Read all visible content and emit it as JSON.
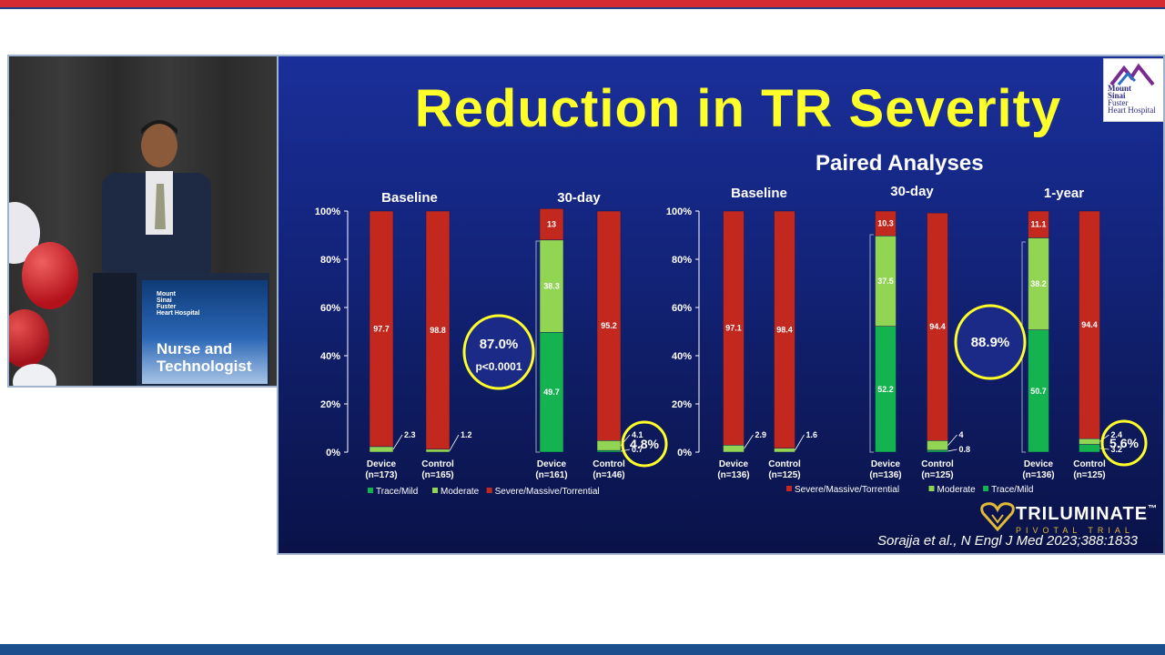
{
  "slide": {
    "title": "Reduction in TR Severity",
    "subtitle": "Paired Analyses",
    "citation": "Sorajja et al., N Engl J Med 2023;388:1833",
    "logo_lines": [
      "Mount",
      "Sinai",
      "Fuster",
      "Heart Hospital"
    ],
    "trial_name": "TRILUMINATE",
    "trial_mark": "™",
    "trial_sub": "PIVOTAL TRIAL"
  },
  "video": {
    "podium_logo_lines": [
      "Mount",
      "Sinai",
      "Fuster",
      "Heart Hospital"
    ],
    "podium_text_lines": [
      "Nurse and",
      "Technologist"
    ]
  },
  "colors": {
    "trace_mild": "#15b350",
    "moderate": "#92d553",
    "severe": "#c3281f",
    "highlight": "#ffff2a",
    "title": "#ffff2a"
  },
  "chart_data": [
    {
      "type": "bar",
      "stacked": true,
      "ylim": [
        0,
        100
      ],
      "yticks": [
        "0%",
        "20%",
        "40%",
        "60%",
        "80%",
        "100%"
      ],
      "groups": [
        "Baseline",
        "30-day"
      ],
      "categories": [
        "Device\n(n=173)",
        "Control\n(n=165)",
        "Device\n(n=161)",
        "Control\n(n=146)"
      ],
      "category_groups": [
        "Baseline",
        "Baseline",
        "30-day",
        "30-day"
      ],
      "series": [
        {
          "name": "Trace/Mild",
          "values": [
            0,
            0,
            49.7,
            0.7
          ],
          "labels": [
            "",
            "",
            "49.7",
            "0.7"
          ]
        },
        {
          "name": "Moderate",
          "values": [
            2.3,
            1.2,
            38.3,
            4.1
          ],
          "labels": [
            "2.3",
            "1.2",
            "38.3",
            "4.1"
          ]
        },
        {
          "name": "Severe/Massive/Torrential",
          "values": [
            97.7,
            98.8,
            13,
            95.2
          ],
          "labels": [
            "97.7",
            "98.8",
            "13",
            "95.2"
          ]
        }
      ],
      "legend_order": [
        "Trace/Mild",
        "Moderate",
        "Severe/Massive/Torrential"
      ],
      "annotations": [
        {
          "text": "87.0%",
          "subtext": "p<0.0001",
          "style": "large-circle"
        },
        {
          "text": "4.8%",
          "style": "small-circle"
        }
      ]
    },
    {
      "type": "bar",
      "stacked": true,
      "ylim": [
        0,
        100
      ],
      "yticks": [
        "0%",
        "20%",
        "40%",
        "60%",
        "80%",
        "100%"
      ],
      "groups": [
        "Baseline",
        "30-day",
        "1-year"
      ],
      "categories": [
        "Device\n(n=136)",
        "Control\n(n=125)",
        "Device\n(n=136)",
        "Control\n(n=125)",
        "Device\n(n=136)",
        "Control\n(n=125)"
      ],
      "category_groups": [
        "Baseline",
        "Baseline",
        "30-day",
        "30-day",
        "1-year",
        "1-year"
      ],
      "series": [
        {
          "name": "Trace/Mild",
          "values": [
            0,
            0,
            52.2,
            0.8,
            50.7,
            3.2
          ],
          "labels": [
            "",
            "",
            "52.2",
            "0.8",
            "50.7",
            "3.2"
          ]
        },
        {
          "name": "Moderate",
          "values": [
            2.9,
            1.6,
            37.5,
            4,
            38.2,
            2.4
          ],
          "labels": [
            "2.9",
            "1.6",
            "37.5",
            "4",
            "38.2",
            "2.4"
          ]
        },
        {
          "name": "Severe/Massive/Torrential",
          "values": [
            97.1,
            98.4,
            10.3,
            94.4,
            11.1,
            94.4
          ],
          "labels": [
            "97.1",
            "98.4",
            "10.3",
            "94.4",
            "11.1",
            "94.4"
          ]
        }
      ],
      "legend_order": [
        "Severe/Massive/Torrential",
        "Moderate",
        "Trace/Mild"
      ],
      "annotations": [
        {
          "text": "88.9%",
          "style": "large-circle"
        },
        {
          "text": "5.6%",
          "style": "small-circle"
        }
      ]
    }
  ]
}
